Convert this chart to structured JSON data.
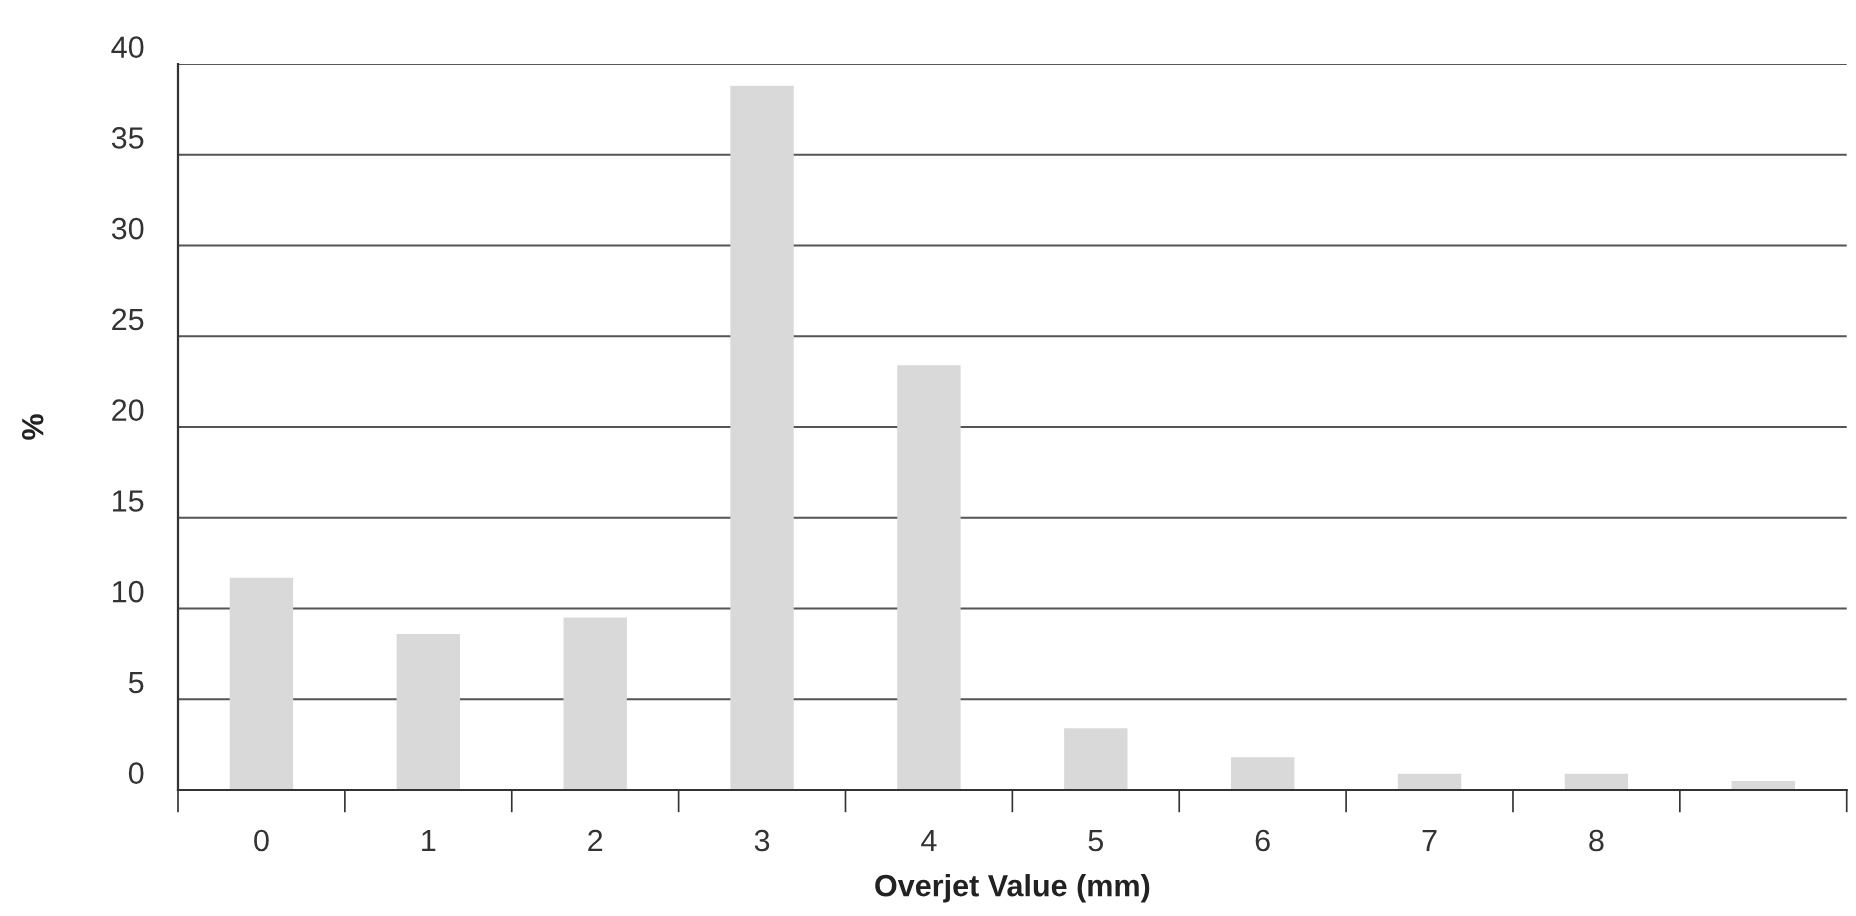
{
  "chart_data": {
    "type": "bar",
    "xlabel": "Overjet Value (mm)",
    "ylabel": "%",
    "categories": [
      "0",
      "1",
      "2",
      "3",
      "4",
      "5",
      "6",
      "7",
      "8",
      null
    ],
    "values": [
      11.7,
      8.6,
      9.5,
      38.8,
      23.4,
      3.4,
      1.8,
      0.9,
      0.9,
      0.5
    ],
    "color": "#d9d9d9",
    "ylim": [
      0,
      40
    ],
    "yticks": [
      0,
      5,
      10,
      15,
      20,
      25,
      30,
      35,
      40
    ],
    "grid": "y"
  }
}
